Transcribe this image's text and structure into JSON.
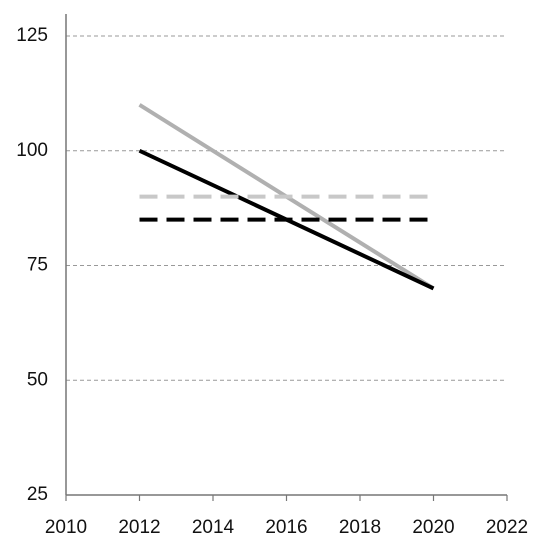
{
  "chart_data": {
    "type": "line",
    "x": [
      2012,
      2020
    ],
    "series": [
      {
        "color": "#b0b0b0",
        "dashed": false,
        "values": [
          110,
          70
        ]
      },
      {
        "color": "#000000",
        "dashed": false,
        "values": [
          100,
          70
        ]
      },
      {
        "color": "#c8c8c8",
        "dashed": true,
        "values": [
          90,
          90
        ]
      },
      {
        "color": "#000000",
        "dashed": true,
        "values": [
          85,
          85
        ]
      }
    ],
    "xlim": [
      2010,
      2022
    ],
    "xticks": [
      2010,
      2012,
      2014,
      2016,
      2018,
      2020,
      2022
    ],
    "ylim": [
      25,
      125
    ],
    "yticks": [
      25,
      50,
      75,
      100,
      125
    ],
    "grid": true
  }
}
